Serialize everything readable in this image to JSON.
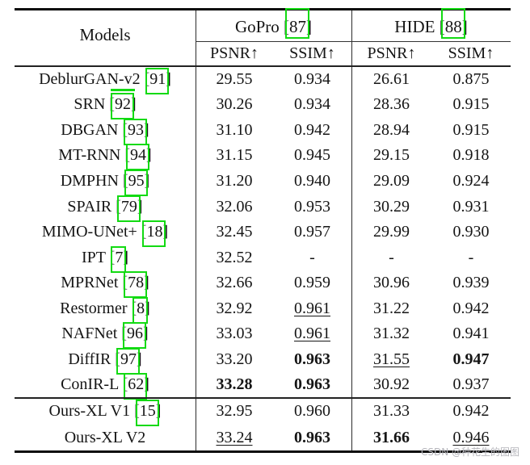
{
  "watermark": "CSDN @种花生的图图",
  "colors": {
    "citation_box": "#12da12",
    "rule": "#0d0d0d",
    "text": "#151515",
    "watermark_gray": "#b5b5bb"
  },
  "table": {
    "models_header": "Models",
    "groups": [
      {
        "label": "GoPro",
        "cite": "87"
      },
      {
        "label": "HIDE",
        "cite": "88"
      }
    ],
    "metric_headers": [
      "PSNR↑",
      "SSIM↑",
      "PSNR↑",
      "SSIM↑"
    ],
    "style_legend": {
      "n": "normal",
      "b": "bold",
      "u": "underline"
    },
    "rows": [
      {
        "model": "DeblurGAN-v2",
        "cite": "91",
        "cells": [
          [
            "29.55",
            "n"
          ],
          [
            "0.934",
            "n"
          ],
          [
            "26.61",
            "n"
          ],
          [
            "0.875",
            "n"
          ]
        ]
      },
      {
        "model": "SRN",
        "cite": "92",
        "cells": [
          [
            "30.26",
            "n"
          ],
          [
            "0.934",
            "n"
          ],
          [
            "28.36",
            "n"
          ],
          [
            "0.915",
            "n"
          ]
        ]
      },
      {
        "model": "DBGAN",
        "cite": "93",
        "cells": [
          [
            "31.10",
            "n"
          ],
          [
            "0.942",
            "n"
          ],
          [
            "28.94",
            "n"
          ],
          [
            "0.915",
            "n"
          ]
        ]
      },
      {
        "model": "MT-RNN",
        "cite": "94",
        "cells": [
          [
            "31.15",
            "n"
          ],
          [
            "0.945",
            "n"
          ],
          [
            "29.15",
            "n"
          ],
          [
            "0.918",
            "n"
          ]
        ]
      },
      {
        "model": "DMPHN",
        "cite": "95",
        "cells": [
          [
            "31.20",
            "n"
          ],
          [
            "0.940",
            "n"
          ],
          [
            "29.09",
            "n"
          ],
          [
            "0.924",
            "n"
          ]
        ]
      },
      {
        "model": "SPAIR",
        "cite": "79",
        "cells": [
          [
            "32.06",
            "n"
          ],
          [
            "0.953",
            "n"
          ],
          [
            "30.29",
            "n"
          ],
          [
            "0.931",
            "n"
          ]
        ]
      },
      {
        "model": "MIMO-UNet+",
        "cite": "18",
        "cells": [
          [
            "32.45",
            "n"
          ],
          [
            "0.957",
            "n"
          ],
          [
            "29.99",
            "n"
          ],
          [
            "0.930",
            "n"
          ]
        ]
      },
      {
        "model": "IPT",
        "cite": "7",
        "cells": [
          [
            "32.52",
            "n"
          ],
          [
            "-",
            "n"
          ],
          [
            "-",
            "n"
          ],
          [
            "-",
            "n"
          ]
        ]
      },
      {
        "model": "MPRNet",
        "cite": "78",
        "cells": [
          [
            "32.66",
            "n"
          ],
          [
            "0.959",
            "n"
          ],
          [
            "30.96",
            "n"
          ],
          [
            "0.939",
            "n"
          ]
        ]
      },
      {
        "model": "Restormer",
        "cite": "8",
        "cells": [
          [
            "32.92",
            "n"
          ],
          [
            "0.961",
            "u"
          ],
          [
            "31.22",
            "n"
          ],
          [
            "0.942",
            "n"
          ]
        ]
      },
      {
        "model": "NAFNet",
        "cite": "96",
        "cells": [
          [
            "33.03",
            "n"
          ],
          [
            "0.961",
            "u"
          ],
          [
            "31.32",
            "n"
          ],
          [
            "0.941",
            "n"
          ]
        ]
      },
      {
        "model": "DiffIR",
        "cite": "97",
        "cells": [
          [
            "33.20",
            "n"
          ],
          [
            "0.963",
            "b"
          ],
          [
            "31.55",
            "u"
          ],
          [
            "0.947",
            "b"
          ]
        ]
      },
      {
        "model": "ConIR-L",
        "cite": "62",
        "cells": [
          [
            "33.28",
            "b"
          ],
          [
            "0.963",
            "b"
          ],
          [
            "30.92",
            "n"
          ],
          [
            "0.937",
            "n"
          ]
        ]
      }
    ],
    "ours_rows": [
      {
        "model": "Ours-XL V1",
        "cite": "15",
        "cells": [
          [
            "32.95",
            "n"
          ],
          [
            "0.960",
            "n"
          ],
          [
            "31.33",
            "n"
          ],
          [
            "0.942",
            "n"
          ]
        ]
      },
      {
        "model": "Ours-XL V2",
        "cite": null,
        "cells": [
          [
            "33.24",
            "u"
          ],
          [
            "0.963",
            "b"
          ],
          [
            "31.66",
            "b"
          ],
          [
            "0.946",
            "u"
          ]
        ]
      }
    ]
  }
}
